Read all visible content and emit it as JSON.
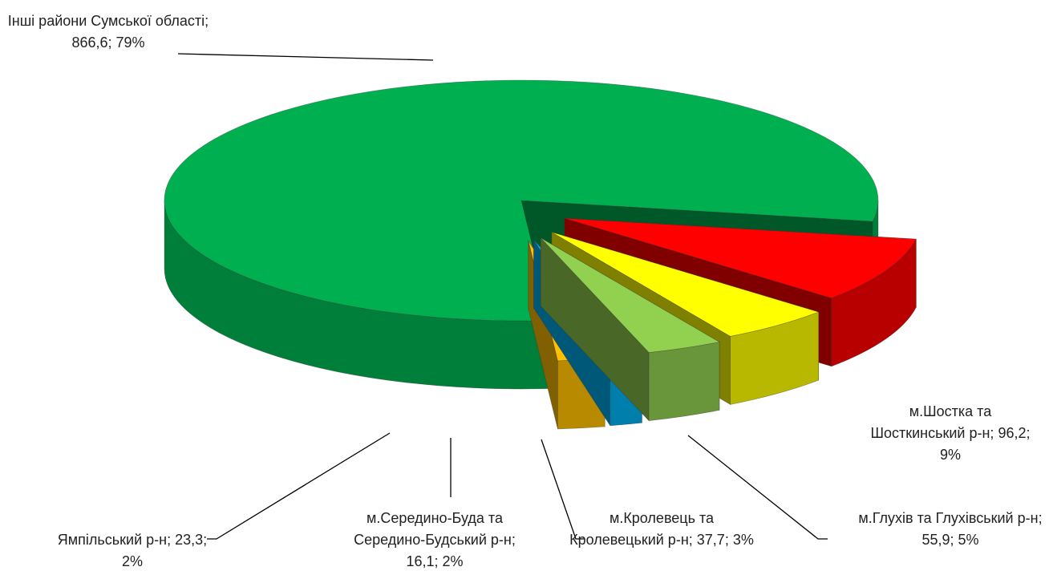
{
  "chart_data": {
    "type": "pie3d",
    "categories": [
      "м.Шостка та Шосткинський р-н",
      "м.Глухів та Глухівський р-н",
      "м.Кролевець та Кролевецький р-н",
      "м.Середино-Буда та Середино-Будський р-н",
      "Ямпільський р-н",
      "Інші райони Сумської області"
    ],
    "values": [
      96.2,
      55.9,
      37.7,
      16.1,
      23.3,
      866.6
    ],
    "value_labels": [
      "96,2",
      "55,9",
      "37,7",
      "16,1",
      "23,3",
      "866,6"
    ],
    "percents": [
      9,
      5,
      3,
      2,
      2,
      79
    ],
    "percent_labels": [
      "9%",
      "5%",
      "3%",
      "2%",
      "2%",
      "79%"
    ],
    "label_separator": "; ",
    "colors": [
      "#ff0000",
      "#ffff00",
      "#92d050",
      "#00b0f0",
      "#ffc000",
      "#00b050"
    ]
  }
}
